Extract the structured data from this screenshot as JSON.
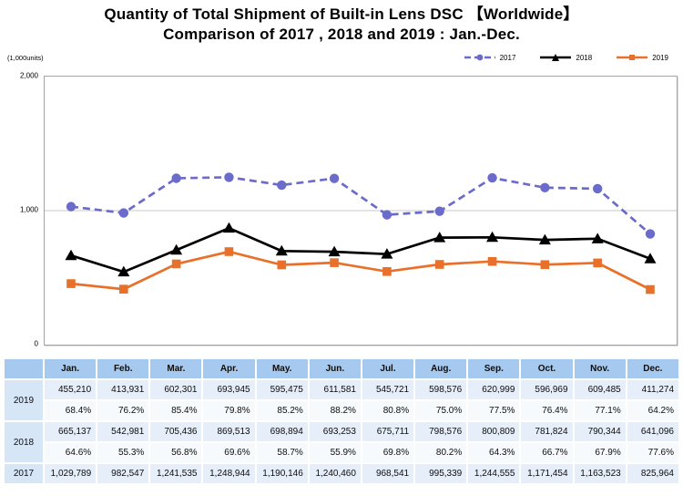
{
  "title": {
    "line1": "Quantity of Total Shipment of Built-in Lens DSC 【Worldwide】",
    "line2": "Comparison of 2017 , 2018 and 2019 : Jan.-Dec."
  },
  "axis": {
    "unit_label": "(1,000units)",
    "y_ticks": [
      {
        "label": "2,000",
        "value": 2000
      },
      {
        "label": "1,000",
        "value": 1000
      },
      {
        "label": "0",
        "value": 0
      }
    ]
  },
  "chart_data": {
    "type": "line",
    "title": "Quantity of Total Shipment of Built-in Lens DSC [Worldwide] Comparison of 2017, 2018 and 2019: Jan.-Dec.",
    "ylabel": "(1,000units)",
    "ylim": [
      0,
      2000
    ],
    "gridlines": [
      1000
    ],
    "legend_position": "top-right",
    "categories": [
      "Jan.",
      "Feb.",
      "Mar.",
      "Apr.",
      "May.",
      "Jun.",
      "Jul.",
      "Aug.",
      "Sep.",
      "Oct.",
      "Nov.",
      "Dec."
    ],
    "series": [
      {
        "name": "2017",
        "color": "#6b6bcb",
        "marker": "circle",
        "dashed": true,
        "values": [
          1029789,
          982547,
          1241535,
          1248944,
          1190146,
          1240460,
          968541,
          995339,
          1244555,
          1171454,
          1163523,
          825964
        ]
      },
      {
        "name": "2018",
        "color": "#000000",
        "marker": "triangle",
        "dashed": false,
        "values": [
          665137,
          542981,
          705436,
          869513,
          698894,
          693253,
          675711,
          798576,
          800809,
          781824,
          790344,
          641096
        ]
      },
      {
        "name": "2019",
        "color": "#e8702b",
        "marker": "square",
        "dashed": false,
        "values": [
          455210,
          413931,
          602301,
          693945,
          595475,
          611581,
          545721,
          598576,
          620999,
          596969,
          609485,
          411274
        ]
      }
    ]
  },
  "table": {
    "months": [
      "Jan.",
      "Feb.",
      "Mar.",
      "Apr.",
      "May.",
      "Jun.",
      "Jul.",
      "Aug.",
      "Sep.",
      "Oct.",
      "Nov.",
      "Dec."
    ],
    "rows": [
      {
        "year": "2019",
        "values": [
          "455,210",
          "413,931",
          "602,301",
          "693,945",
          "595,475",
          "611,581",
          "545,721",
          "598,576",
          "620,999",
          "596,969",
          "609,485",
          "411,274"
        ],
        "percents": [
          "68.4%",
          "76.2%",
          "85.4%",
          "79.8%",
          "85.2%",
          "88.2%",
          "80.8%",
          "75.0%",
          "77.5%",
          "76.4%",
          "77.1%",
          "64.2%"
        ]
      },
      {
        "year": "2018",
        "values": [
          "665,137",
          "542,981",
          "705,436",
          "869,513",
          "698,894",
          "693,253",
          "675,711",
          "798,576",
          "800,809",
          "781,824",
          "790,344",
          "641,096"
        ],
        "percents": [
          "64.6%",
          "55.3%",
          "56.8%",
          "69.6%",
          "58.7%",
          "55.9%",
          "69.8%",
          "80.2%",
          "64.3%",
          "66.7%",
          "67.9%",
          "77.6%"
        ]
      },
      {
        "year": "2017",
        "values": [
          "1,029,789",
          "982,547",
          "1,241,535",
          "1,248,944",
          "1,190,146",
          "1,240,460",
          "968,541",
          "995,339",
          "1,244,555",
          "1,171,454",
          "1,163,523",
          "825,964"
        ]
      }
    ]
  }
}
